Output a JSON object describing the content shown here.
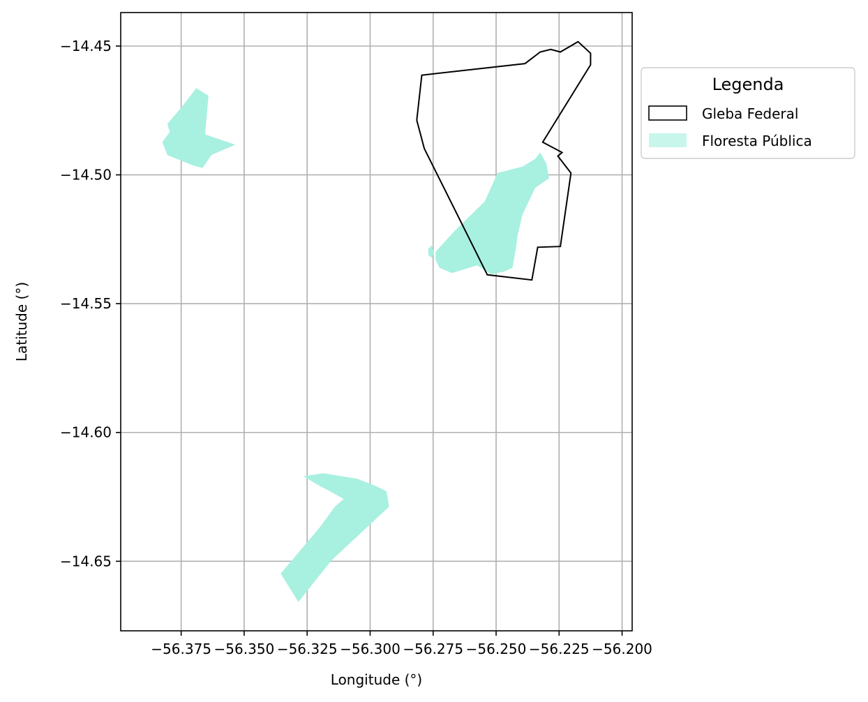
{
  "chart_data": {
    "type": "map",
    "xlabel": "Longitude (°)",
    "ylabel": "Latitude (°)",
    "xlim": [
      -56.399,
      -56.196
    ],
    "ylim": [
      -14.677,
      -14.437
    ],
    "grid": true,
    "xticks": [
      -56.375,
      -56.35,
      -56.325,
      -56.3,
      -56.275,
      -56.25,
      -56.225,
      -56.2
    ],
    "xtick_labels": [
      "−56.375",
      "−56.350",
      "−56.325",
      "−56.300",
      "−56.275",
      "−56.250",
      "−56.225",
      "−56.200"
    ],
    "yticks": [
      -14.45,
      -14.5,
      -14.55,
      -14.6,
      -14.65
    ],
    "ytick_labels": [
      "−14.45",
      "−14.50",
      "−14.55",
      "−14.60",
      "−14.65"
    ],
    "legend": {
      "title": "Legenda",
      "placement": "outside-right-top",
      "entries": [
        {
          "label": "Gleba Federal",
          "style": "outline",
          "color": "#000000"
        },
        {
          "label": "Floresta Pública",
          "style": "fill",
          "color": "#a8f0e0"
        }
      ]
    },
    "layers": [
      {
        "name": "Gleba Federal",
        "style": "outline",
        "stroke": "#000000",
        "polygons": [
          [
            [
              -56.2795,
              -14.4613
            ],
            [
              -56.2385,
              -14.4568
            ],
            [
              -56.2325,
              -14.4523
            ],
            [
              -56.2283,
              -14.4513
            ],
            [
              -56.2245,
              -14.4523
            ],
            [
              -56.2175,
              -14.4483
            ],
            [
              -56.2125,
              -14.4528
            ],
            [
              -56.2125,
              -14.4573
            ],
            [
              -56.2315,
              -14.4873
            ],
            [
              -56.2238,
              -14.4913
            ],
            [
              -56.2255,
              -14.4927
            ],
            [
              -56.2203,
              -14.4993
            ],
            [
              -56.2245,
              -14.5278
            ],
            [
              -56.2335,
              -14.5281
            ],
            [
              -56.2358,
              -14.5408
            ],
            [
              -56.2535,
              -14.5388
            ],
            [
              -56.2785,
              -14.4898
            ],
            [
              -56.2815,
              -14.4788
            ]
          ]
        ]
      },
      {
        "name": "Floresta Pública",
        "style": "fill",
        "fill": "#a8f0e0",
        "polygons": [
          [
            [
              -56.369,
              -14.4663
            ],
            [
              -56.3642,
              -14.4693
            ],
            [
              -56.3655,
              -14.4843
            ],
            [
              -56.3535,
              -14.4883
            ],
            [
              -56.363,
              -14.4923
            ],
            [
              -56.3665,
              -14.4973
            ],
            [
              -56.3705,
              -14.4963
            ],
            [
              -56.3745,
              -14.4947
            ],
            [
              -56.3805,
              -14.4923
            ],
            [
              -56.3825,
              -14.4873
            ],
            [
              -56.3795,
              -14.4833
            ],
            [
              -56.3805,
              -14.4803
            ],
            [
              -56.3745,
              -14.4733
            ]
          ],
          [
            [
              -56.3265,
              -14.617
            ],
            [
              -56.3185,
              -14.6158
            ],
            [
              -56.305,
              -14.618
            ],
            [
              -56.2985,
              -14.6205
            ],
            [
              -56.2935,
              -14.6228
            ],
            [
              -56.2925,
              -14.6288
            ],
            [
              -56.3155,
              -14.6498
            ],
            [
              -56.3285,
              -14.6658
            ],
            [
              -56.3355,
              -14.6548
            ],
            [
              -56.32,
              -14.6368
            ],
            [
              -56.314,
              -14.6288
            ],
            [
              -56.3105,
              -14.6258
            ],
            [
              -56.316,
              -14.6228
            ],
            [
              -56.32,
              -14.6208
            ]
          ],
          [
            [
              -56.274,
              -14.5298
            ],
            [
              -56.266,
              -14.5213
            ],
            [
              -56.2545,
              -14.5103
            ],
            [
              -56.2515,
              -14.5038
            ],
            [
              -56.2495,
              -14.4993
            ],
            [
              -56.2395,
              -14.4968
            ],
            [
              -56.2345,
              -14.4938
            ],
            [
              -56.2325,
              -14.4913
            ],
            [
              -56.23,
              -14.4957
            ],
            [
              -56.229,
              -14.5013
            ],
            [
              -56.2345,
              -14.5051
            ],
            [
              -56.2395,
              -14.5153
            ],
            [
              -56.2415,
              -14.5236
            ],
            [
              -56.242,
              -14.5276
            ],
            [
              -56.2435,
              -14.5361
            ],
            [
              -56.247,
              -14.5376
            ],
            [
              -56.252,
              -14.5386
            ],
            [
              -56.2575,
              -14.5351
            ],
            [
              -56.2675,
              -14.5381
            ],
            [
              -56.2725,
              -14.5361
            ],
            [
              -56.274,
              -14.5331
            ]
          ],
          [
            [
              -56.2755,
              -14.5273
            ],
            [
              -56.2748,
              -14.5303
            ],
            [
              -56.2753,
              -14.5323
            ],
            [
              -56.2768,
              -14.5313
            ],
            [
              -56.277,
              -14.5288
            ]
          ]
        ]
      }
    ]
  }
}
